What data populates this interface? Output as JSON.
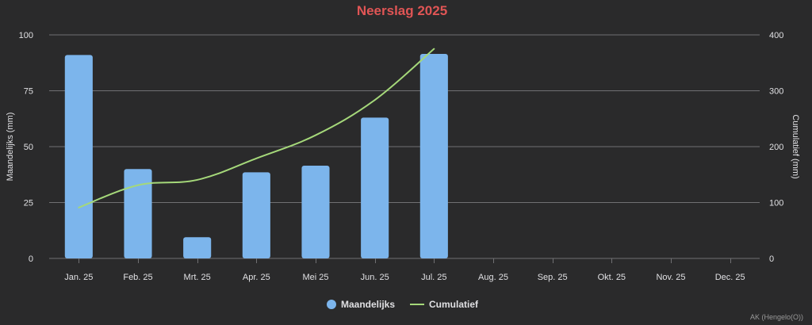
{
  "colors": {
    "background": "#2a2a2b",
    "title": "#e05555",
    "bar": "#7cb5ec",
    "line": "#a5d87a",
    "grid": "#707073",
    "text": "#e0e0e3",
    "credits": "#999999"
  },
  "credits": "AK (Hengelo(O))",
  "chart_data": {
    "type": "bar",
    "title": "Neerslag 2025",
    "categories": [
      "Jan. 25",
      "Feb. 25",
      "Mrt. 25",
      "Apr. 25",
      "Mei 25",
      "Jun. 25",
      "Jul. 25",
      "Aug. 25",
      "Sep. 25",
      "Okt. 25",
      "Nov. 25",
      "Dec. 25"
    ],
    "ylabel": "Maandelijks (mm)",
    "y2label": "Cumulatief (mm)",
    "ylim": [
      0,
      100
    ],
    "y2lim": [
      0,
      400
    ],
    "yticks": [
      0,
      25,
      50,
      75,
      100
    ],
    "y2ticks": [
      0,
      100,
      200,
      300,
      400
    ],
    "grid": true,
    "legend_position": "bottom-center",
    "series": [
      {
        "name": "Maandelijks",
        "type": "bar",
        "axis": "left",
        "values": [
          91,
          40,
          9.5,
          38.5,
          41.5,
          63,
          91.5,
          null,
          null,
          null,
          null,
          null
        ]
      },
      {
        "name": "Cumulatief",
        "type": "spline",
        "axis": "right",
        "values": [
          91,
          131,
          140.5,
          179,
          220.5,
          283.5,
          375,
          null,
          null,
          null,
          null,
          null
        ]
      }
    ]
  }
}
